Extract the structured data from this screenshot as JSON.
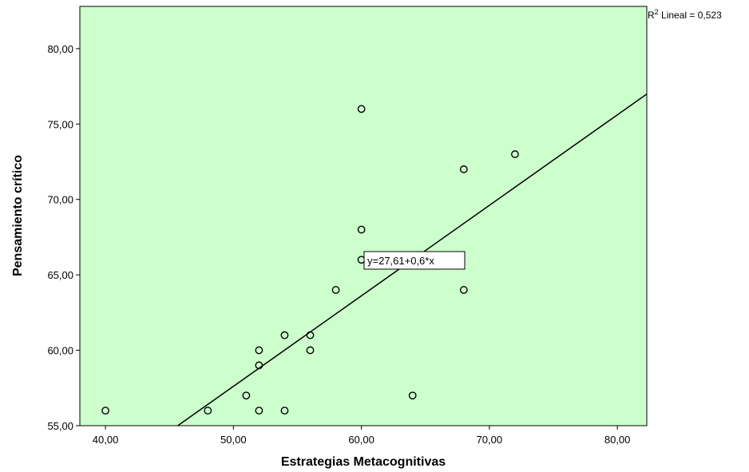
{
  "chart_data": {
    "type": "scatter",
    "xlabel": "Estrategias Metacognitivas",
    "ylabel": "Pensamiento crítico",
    "xlim": [
      38,
      82.3
    ],
    "ylim": [
      55,
      82.8
    ],
    "x_ticks": [
      "40,00",
      "50,00",
      "60,00",
      "70,00",
      "80,00"
    ],
    "x_tick_values": [
      40,
      50,
      60,
      70,
      80
    ],
    "y_ticks": [
      "55,00",
      "60,00",
      "65,00",
      "70,00",
      "75,00",
      "80,00"
    ],
    "y_tick_values": [
      55,
      60,
      65,
      70,
      75,
      80
    ],
    "points": [
      {
        "x": 40,
        "y": 56
      },
      {
        "x": 48,
        "y": 56
      },
      {
        "x": 51,
        "y": 57
      },
      {
        "x": 52,
        "y": 56
      },
      {
        "x": 52,
        "y": 59
      },
      {
        "x": 52,
        "y": 60
      },
      {
        "x": 54,
        "y": 56
      },
      {
        "x": 54,
        "y": 61
      },
      {
        "x": 56,
        "y": 60
      },
      {
        "x": 56,
        "y": 61
      },
      {
        "x": 58,
        "y": 64
      },
      {
        "x": 60,
        "y": 66
      },
      {
        "x": 60,
        "y": 68
      },
      {
        "x": 60,
        "y": 76
      },
      {
        "x": 64,
        "y": 57
      },
      {
        "x": 68,
        "y": 64
      },
      {
        "x": 68,
        "y": 72
      },
      {
        "x": 72,
        "y": 73
      }
    ],
    "fit_line": {
      "intercept": 27.61,
      "slope": 0.6,
      "equation_label": "y=27,61+0,6*x",
      "r2_prefix": "R",
      "r2_sup": "2",
      "r2_suffix": " Lineal = 0,523"
    },
    "colors": {
      "plot_background": "#ccffcc",
      "marker_stroke": "#000000",
      "line": "#000000"
    },
    "grid": false
  }
}
